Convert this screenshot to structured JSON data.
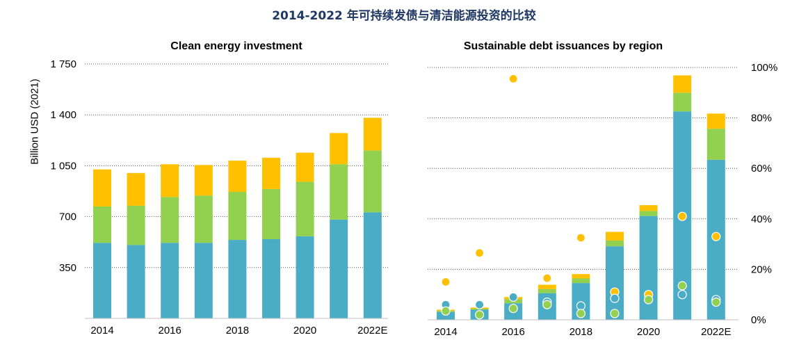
{
  "title": "2014-2022 年可持续发债与清洁能源投资的比较",
  "colors": {
    "blue": "#4bacc6",
    "green": "#92d050",
    "yellow": "#ffc000",
    "title": "#1f3864"
  },
  "chart_data": [
    {
      "type": "bar",
      "title": "Clean energy investment",
      "ylabel": "Billion USD (2021)",
      "stacked": true,
      "ylim": [
        0,
        1750
      ],
      "yticks": [
        "350",
        "700",
        "1 050",
        "1 400",
        "1 750"
      ],
      "ytick_values": [
        350,
        700,
        1050,
        1400,
        1750
      ],
      "categories": [
        "2014",
        "2015",
        "2016",
        "2017",
        "2018",
        "2019",
        "2020",
        "2021",
        "2022E"
      ],
      "xtick_labels": [
        "2014",
        "",
        "2016",
        "",
        "2018",
        "",
        "2020",
        "",
        "2022E"
      ],
      "grid": true,
      "series": [
        {
          "color": "blue",
          "values": [
            520,
            505,
            520,
            520,
            540,
            545,
            565,
            680,
            730
          ]
        },
        {
          "color": "green",
          "values": [
            250,
            270,
            315,
            325,
            330,
            345,
            375,
            380,
            425
          ]
        },
        {
          "color": "yellow",
          "values": [
            255,
            225,
            225,
            210,
            215,
            215,
            200,
            215,
            225
          ]
        }
      ]
    },
    {
      "type": "bar",
      "title": "Sustainable debt issuances by region",
      "stacked": true,
      "ylim": [
        0,
        1750
      ],
      "categories": [
        "2014",
        "2015",
        "2016",
        "2017",
        "2018",
        "2019",
        "2020",
        "2021",
        "2022E"
      ],
      "xtick_labels": [
        "2014",
        "",
        "2016",
        "",
        "2018",
        "",
        "2020",
        "",
        "2022E"
      ],
      "y2lim": [
        0,
        1
      ],
      "y2ticks": [
        "0%",
        "20%",
        "40%",
        "60%",
        "80%",
        "100%"
      ],
      "y2tick_values": [
        0,
        0.2,
        0.4,
        0.6,
        0.8,
        1.0
      ],
      "grid": true,
      "series": [
        {
          "color": "blue",
          "values": [
            55,
            70,
            115,
            185,
            255,
            510,
            720,
            1445,
            1110
          ]
        },
        {
          "color": "green",
          "values": [
            7,
            7,
            28,
            28,
            32,
            40,
            35,
            130,
            215
          ]
        },
        {
          "color": "yellow",
          "values": [
            8,
            8,
            15,
            30,
            30,
            60,
            40,
            120,
            105
          ]
        }
      ],
      "scatter_series": [
        {
          "color": "yellow",
          "axis": "right",
          "values": [
            0.15,
            0.265,
            0.955,
            0.165,
            0.325,
            0.11,
            0.1,
            0.41,
            0.33
          ]
        },
        {
          "color": "blue",
          "axis": "right",
          "values": [
            0.06,
            0.06,
            0.09,
            0.07,
            0.055,
            0.085,
            0.08,
            0.1,
            0.08
          ]
        },
        {
          "color": "green",
          "axis": "right",
          "values": [
            0.035,
            0.02,
            0.045,
            0.06,
            0.025,
            0.025,
            0.08,
            0.135,
            0.07
          ]
        }
      ]
    }
  ]
}
